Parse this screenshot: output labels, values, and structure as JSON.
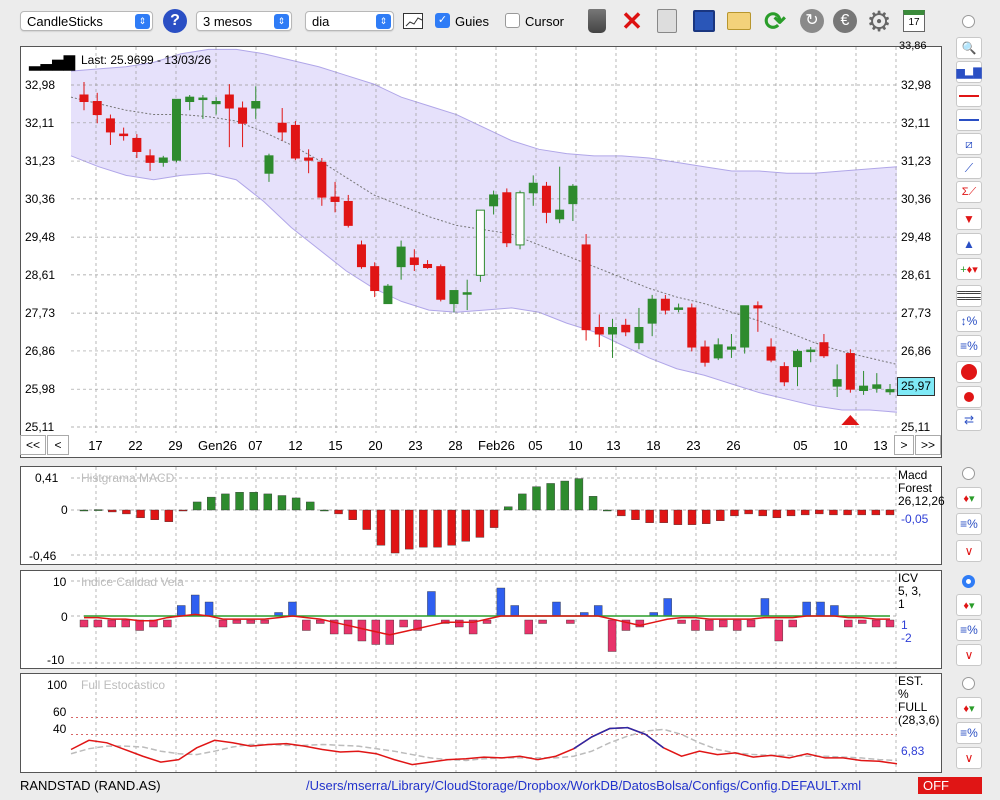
{
  "toolbar": {
    "chart_type": "CandleSticks",
    "period": "3 mesos",
    "interval": "dia",
    "guides_label": "Guies",
    "guides_checked": true,
    "cursor_label": "Cursor",
    "cursor_checked": false,
    "icons": [
      "help-icon",
      "chart-thumbnail-icon",
      "trash-icon",
      "delete-icon",
      "clipboard-icon",
      "save-icon",
      "folder-icon",
      "refresh-icon",
      "sync-icon",
      "euro-icon",
      "gear-icon",
      "calendar-icon"
    ],
    "calendar_day": "17"
  },
  "price_panel": {
    "last_label": "Last: 25.9699 - 13/03/26",
    "current_value": "25,97",
    "y_ticks": [
      "32,98",
      "32,11",
      "31,23",
      "30,36",
      "29,48",
      "28,61",
      "27,73",
      "26,86",
      "25,98",
      "25,11"
    ],
    "top_cut_label": "33,86",
    "x_ticks": [
      "17",
      "22",
      "29",
      "Gen26",
      "07",
      "12",
      "15",
      "20",
      "23",
      "28",
      "Feb26",
      "05",
      "10",
      "13",
      "18",
      "23",
      "26",
      "05",
      "10",
      "13"
    ],
    "nav": {
      "first": "<<",
      "prev": "<",
      "next": ">",
      "last": ">>"
    }
  },
  "chart_data": [
    {
      "type": "candlestick",
      "title": "",
      "ylim": [
        25.11,
        33.86
      ],
      "y_ticks": [
        32.98,
        32.11,
        31.23,
        30.36,
        29.48,
        28.61,
        27.73,
        26.86,
        25.98,
        25.11
      ],
      "x_labels": [
        "17",
        "22",
        "29",
        "Gen26",
        "07",
        "12",
        "15",
        "20",
        "23",
        "28",
        "Feb26",
        "05",
        "10",
        "13",
        "18",
        "23",
        "26",
        "05",
        "10",
        "13"
      ],
      "candles": [
        {
          "o": 32.75,
          "h": 33.05,
          "l": 32.4,
          "c": 32.6
        },
        {
          "o": 32.6,
          "h": 32.8,
          "l": 32.1,
          "c": 32.3
        },
        {
          "o": 32.2,
          "h": 32.3,
          "l": 31.6,
          "c": 31.9
        },
        {
          "o": 31.85,
          "h": 32.0,
          "l": 31.7,
          "c": 31.82
        },
        {
          "o": 31.75,
          "h": 31.85,
          "l": 31.3,
          "c": 31.45
        },
        {
          "o": 31.35,
          "h": 31.5,
          "l": 31.0,
          "c": 31.2
        },
        {
          "o": 31.2,
          "h": 31.35,
          "l": 31.1,
          "c": 31.3
        },
        {
          "o": 31.25,
          "h": 32.65,
          "l": 31.2,
          "c": 32.65
        },
        {
          "o": 32.6,
          "h": 32.75,
          "l": 32.4,
          "c": 32.7
        },
        {
          "o": 32.65,
          "h": 32.75,
          "l": 32.2,
          "c": 32.68
        },
        {
          "o": 32.55,
          "h": 32.7,
          "l": 32.3,
          "c": 32.6
        },
        {
          "o": 32.75,
          "h": 33.0,
          "l": 31.55,
          "c": 32.45
        },
        {
          "o": 32.45,
          "h": 32.6,
          "l": 31.55,
          "c": 32.1
        },
        {
          "o": 32.45,
          "h": 32.95,
          "l": 32.2,
          "c": 32.6
        },
        {
          "o": 30.95,
          "h": 31.4,
          "l": 30.75,
          "c": 31.35
        },
        {
          "o": 32.1,
          "h": 32.45,
          "l": 31.7,
          "c": 31.9
        },
        {
          "o": 32.05,
          "h": 32.15,
          "l": 31.25,
          "c": 31.3
        },
        {
          "o": 31.3,
          "h": 31.5,
          "l": 30.95,
          "c": 31.25
        },
        {
          "o": 31.2,
          "h": 31.3,
          "l": 30.2,
          "c": 30.4
        },
        {
          "o": 30.4,
          "h": 30.75,
          "l": 30.05,
          "c": 30.3
        },
        {
          "o": 30.3,
          "h": 30.45,
          "l": 29.7,
          "c": 29.75
        },
        {
          "o": 29.3,
          "h": 29.4,
          "l": 28.75,
          "c": 28.8
        },
        {
          "o": 28.8,
          "h": 28.9,
          "l": 28.1,
          "c": 28.25
        },
        {
          "o": 27.95,
          "h": 28.4,
          "l": 27.95,
          "c": 28.35
        },
        {
          "o": 28.8,
          "h": 29.4,
          "l": 28.5,
          "c": 29.25
        },
        {
          "o": 29.0,
          "h": 29.2,
          "l": 28.7,
          "c": 28.85
        },
        {
          "o": 28.85,
          "h": 28.95,
          "l": 28.75,
          "c": 28.78
        },
        {
          "o": 28.8,
          "h": 28.85,
          "l": 28.0,
          "c": 28.05
        },
        {
          "o": 27.95,
          "h": 28.25,
          "l": 27.75,
          "c": 28.25
        },
        {
          "o": 28.2,
          "h": 28.5,
          "l": 27.8,
          "c": 28.2
        },
        {
          "o": 28.6,
          "h": 30.1,
          "l": 28.45,
          "c": 30.1
        },
        {
          "o": 30.2,
          "h": 30.55,
          "l": 30.0,
          "c": 30.45
        },
        {
          "o": 30.5,
          "h": 30.6,
          "l": 29.25,
          "c": 29.35
        },
        {
          "o": 29.3,
          "h": 30.55,
          "l": 29.2,
          "c": 30.5
        },
        {
          "o": 30.5,
          "h": 30.9,
          "l": 30.2,
          "c": 30.72
        },
        {
          "o": 30.65,
          "h": 30.75,
          "l": 29.8,
          "c": 30.05
        },
        {
          "o": 29.9,
          "h": 31.1,
          "l": 29.8,
          "c": 30.1
        },
        {
          "o": 30.25,
          "h": 30.7,
          "l": 29.85,
          "c": 30.65
        },
        {
          "o": 29.3,
          "h": 29.55,
          "l": 27.1,
          "c": 27.35
        },
        {
          "o": 27.4,
          "h": 27.7,
          "l": 26.95,
          "c": 27.25
        },
        {
          "o": 27.25,
          "h": 27.6,
          "l": 26.7,
          "c": 27.4
        },
        {
          "o": 27.45,
          "h": 27.6,
          "l": 27.2,
          "c": 27.3
        },
        {
          "o": 27.05,
          "h": 27.85,
          "l": 26.9,
          "c": 27.4
        },
        {
          "o": 27.5,
          "h": 28.15,
          "l": 27.2,
          "c": 28.05
        },
        {
          "o": 28.05,
          "h": 28.15,
          "l": 27.7,
          "c": 27.8
        },
        {
          "o": 27.85,
          "h": 27.95,
          "l": 27.75,
          "c": 27.85
        },
        {
          "o": 27.85,
          "h": 27.95,
          "l": 26.85,
          "c": 26.95
        },
        {
          "o": 26.95,
          "h": 27.1,
          "l": 26.5,
          "c": 26.6
        },
        {
          "o": 26.7,
          "h": 27.15,
          "l": 26.65,
          "c": 27.0
        },
        {
          "o": 26.9,
          "h": 27.25,
          "l": 26.7,
          "c": 26.95
        },
        {
          "o": 26.95,
          "h": 27.9,
          "l": 26.8,
          "c": 27.9
        },
        {
          "o": 27.9,
          "h": 28.0,
          "l": 27.3,
          "c": 27.85
        },
        {
          "o": 26.95,
          "h": 27.15,
          "l": 26.6,
          "c": 26.65
        },
        {
          "o": 26.5,
          "h": 26.6,
          "l": 26.05,
          "c": 26.15
        },
        {
          "o": 26.5,
          "h": 26.9,
          "l": 26.05,
          "c": 26.85
        },
        {
          "o": 26.85,
          "h": 26.95,
          "l": 26.6,
          "c": 26.88
        },
        {
          "o": 27.05,
          "h": 27.25,
          "l": 26.7,
          "c": 26.75
        },
        {
          "o": 26.05,
          "h": 26.55,
          "l": 25.8,
          "c": 26.2
        },
        {
          "o": 26.8,
          "h": 26.9,
          "l": 25.9,
          "c": 25.98
        },
        {
          "o": 25.95,
          "h": 26.4,
          "l": 25.85,
          "c": 26.05
        },
        {
          "o": 26.0,
          "h": 26.35,
          "l": 25.9,
          "c": 26.08
        },
        {
          "o": 25.92,
          "h": 26.1,
          "l": 25.85,
          "c": 25.97
        }
      ],
      "bollinger_upper": [
        33.3,
        33.35,
        33.4,
        33.5,
        33.7,
        33.8,
        33.8,
        33.7,
        33.55,
        33.4,
        33.2,
        33.0,
        32.7,
        32.5,
        32.3,
        32.0,
        31.7,
        31.5,
        31.4,
        31.35,
        31.35,
        31.3,
        31.2,
        31.1,
        31.0,
        31.0,
        30.95,
        30.95,
        31.0,
        31.05,
        31.1
      ],
      "bollinger_lower": [
        31.35,
        31.1,
        30.9,
        30.8,
        30.9,
        30.95,
        30.8,
        30.3,
        29.7,
        29.2,
        28.7,
        28.3,
        28.0,
        27.8,
        27.75,
        27.8,
        27.85,
        27.75,
        27.5,
        27.3,
        27.0,
        26.7,
        26.45,
        26.3,
        26.1,
        25.9,
        25.75,
        25.6,
        25.5,
        25.5,
        25.45
      ],
      "moving_average": [
        32.7,
        32.55,
        32.4,
        32.3,
        32.3,
        32.25,
        32.15,
        31.9,
        31.6,
        31.25,
        30.85,
        30.45,
        30.2,
        29.95,
        29.75,
        29.65,
        29.55,
        29.3,
        29.05,
        28.8,
        28.55,
        28.3,
        28.1,
        27.95,
        27.75,
        27.55,
        27.3,
        27.05,
        26.85,
        26.7,
        26.55
      ],
      "signal_marker": {
        "index": 58,
        "type": "buy-triangle"
      }
    },
    {
      "type": "bar",
      "title": "Histgrama MACD",
      "ylim": [
        -0.46,
        0.41
      ],
      "y_ticks": [
        0.41,
        0,
        -0.46
      ],
      "values": [
        0.0,
        0.005,
        -0.02,
        -0.04,
        -0.08,
        -0.1,
        -0.12,
        -0.01,
        0.1,
        0.16,
        0.2,
        0.22,
        0.22,
        0.2,
        0.18,
        0.15,
        0.1,
        0.0,
        -0.04,
        -0.1,
        -0.2,
        -0.36,
        -0.44,
        -0.4,
        -0.38,
        -0.38,
        -0.36,
        -0.32,
        -0.28,
        -0.18,
        0.04,
        0.2,
        0.29,
        0.33,
        0.36,
        0.39,
        0.17,
        0.0,
        -0.06,
        -0.1,
        -0.13,
        -0.13,
        -0.15,
        -0.15,
        -0.14,
        -0.11,
        -0.06,
        -0.04,
        -0.06,
        -0.08,
        -0.06,
        -0.05,
        -0.04,
        -0.05,
        -0.05,
        -0.05,
        -0.05,
        -0.05
      ],
      "legend_lines": [
        "Macd",
        "Forest",
        "26,12,26"
      ],
      "current": "-0,05"
    },
    {
      "type": "bar",
      "title": "Indice Calidad Vela",
      "ylim": [
        -10,
        10
      ],
      "y_ticks": [
        10,
        0,
        -10
      ],
      "values": [
        -2,
        -2,
        -2,
        -2,
        -3,
        -2,
        -2,
        3,
        6,
        4,
        -2,
        -1,
        -1,
        -1,
        1,
        4,
        -3,
        -1,
        -4,
        -4,
        -6,
        -7,
        -7,
        -2,
        -3,
        7,
        -1,
        -2,
        -4,
        -1,
        8,
        3,
        -4,
        -1,
        4,
        -1,
        1,
        3,
        -9,
        -3,
        -2,
        1,
        5,
        -1,
        -3,
        -3,
        -2,
        -3,
        -2,
        5,
        -6,
        -2,
        4,
        4,
        3,
        -2,
        -1,
        -2,
        -2
      ],
      "line_values": [
        -0.5,
        -0.5,
        -1,
        -1,
        -1.5,
        -1.5,
        -0.5,
        0,
        0.5,
        0,
        -1,
        -1,
        -1,
        -1,
        -0.5,
        0,
        -0.5,
        -1,
        -2,
        -3,
        -4,
        -5,
        -6,
        -5,
        -4,
        -3,
        -2,
        -2,
        -2,
        -1,
        0,
        0,
        0,
        0,
        0,
        0,
        0,
        0,
        -1,
        -2,
        -3,
        -2,
        -1,
        -0.5,
        -0.5,
        -1,
        -1,
        -1,
        -1,
        -0.5,
        -0.5,
        -0.5,
        0,
        0,
        0,
        -0.5,
        -0.5,
        -1,
        -1
      ],
      "legend_lines": [
        "ICV",
        "5, 3, 1"
      ],
      "current_values": [
        "1",
        "-2"
      ]
    },
    {
      "type": "line",
      "title": "Full Estocastico",
      "ylim": [
        0,
        100
      ],
      "y_ticks": [
        100,
        60,
        40
      ],
      "series": [
        {
          "values": [
            22,
            33,
            30,
            22,
            14,
            7,
            10,
            24,
            33,
            30,
            26,
            28,
            29,
            26,
            22,
            19,
            20,
            17,
            10,
            4,
            7,
            10,
            11,
            13,
            12,
            14,
            10,
            14,
            23,
            37,
            47,
            48,
            40,
            24,
            14,
            20,
            16,
            18,
            13,
            15,
            12,
            17,
            12,
            12,
            9,
            8,
            5
          ]
        },
        {
          "values": [
            17,
            23,
            26,
            26,
            25,
            20,
            17,
            16,
            20,
            25,
            28,
            28,
            27,
            27,
            28,
            27,
            26,
            23,
            20,
            16,
            12,
            10,
            9,
            11,
            12,
            12,
            12,
            12,
            14,
            20,
            30,
            38,
            44,
            46,
            40,
            30,
            22,
            18,
            16,
            15,
            15,
            14,
            14,
            13,
            12,
            10,
            9
          ]
        }
      ],
      "legend_lines": [
        "EST. %",
        "FULL",
        "(28,3,6)"
      ],
      "current": "6,83"
    }
  ],
  "status_bar": {
    "symbol": "RANDSTAD (RAND.AS)",
    "config_path": "/Users/mserra/Library/CloudStorage/Dropbox/WorkDB/DatosBolsa/Configs/Config.DEFAULT.xml",
    "mode": "OFF"
  },
  "colors": {
    "up": "#2e8b2e",
    "down": "#e01515",
    "blue_bar": "#2f5ff0",
    "pink_bar": "#e8336a",
    "band_fill": "#e6e1fb",
    "band_line": "#b0a6e8",
    "accent": "#2f7cf6",
    "current_value_bg": "#7fe9f6"
  }
}
